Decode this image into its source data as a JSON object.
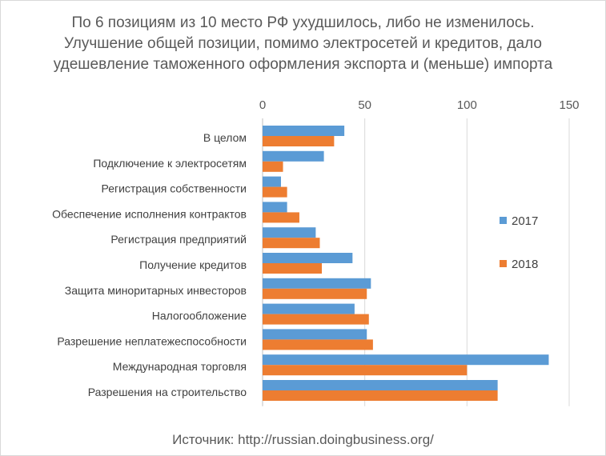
{
  "title": "По 6 позициям из 10 место РФ ухудшилось, либо не изменилось. Улучшение общей позиции, помимо электросетей и кредитов, дало удешевление таможенного оформления экспорта и (меньше) импорта",
  "source": "Источник: http://russian.doingbusiness.org/",
  "chart_data": {
    "type": "bar",
    "orientation": "horizontal",
    "title": "По 6 позициям из 10 место РФ ухудшилось, либо не изменилось. Улучшение общей позиции, помимо электросетей и кредитов, дало удешевление таможенного оформления экспорта и (меньше) импорта",
    "categories": [
      "В целом",
      "Подключение к электросетям",
      "Регистрация собственности",
      "Обеспечение исполнения контрактов",
      "Регистрация предприятий",
      "Получение кредитов",
      "Защита миноритарных инвесторов",
      "Налогообложение",
      "Разрешение неплатежеспособности",
      "Международная торговля",
      "Разрешения на строительство"
    ],
    "series": [
      {
        "name": "2017",
        "color": "#5b9bd5",
        "values": [
          40,
          30,
          9,
          12,
          26,
          44,
          53,
          45,
          51,
          140,
          115
        ]
      },
      {
        "name": "2018",
        "color": "#ed7d31",
        "values": [
          35,
          10,
          12,
          18,
          28,
          29,
          51,
          52,
          54,
          100,
          115
        ]
      }
    ],
    "xlim": [
      0,
      150
    ],
    "xticks": [
      "0",
      "50",
      "100",
      "150"
    ],
    "xaxis_position": "top",
    "grid": true,
    "legend_position": "right"
  }
}
